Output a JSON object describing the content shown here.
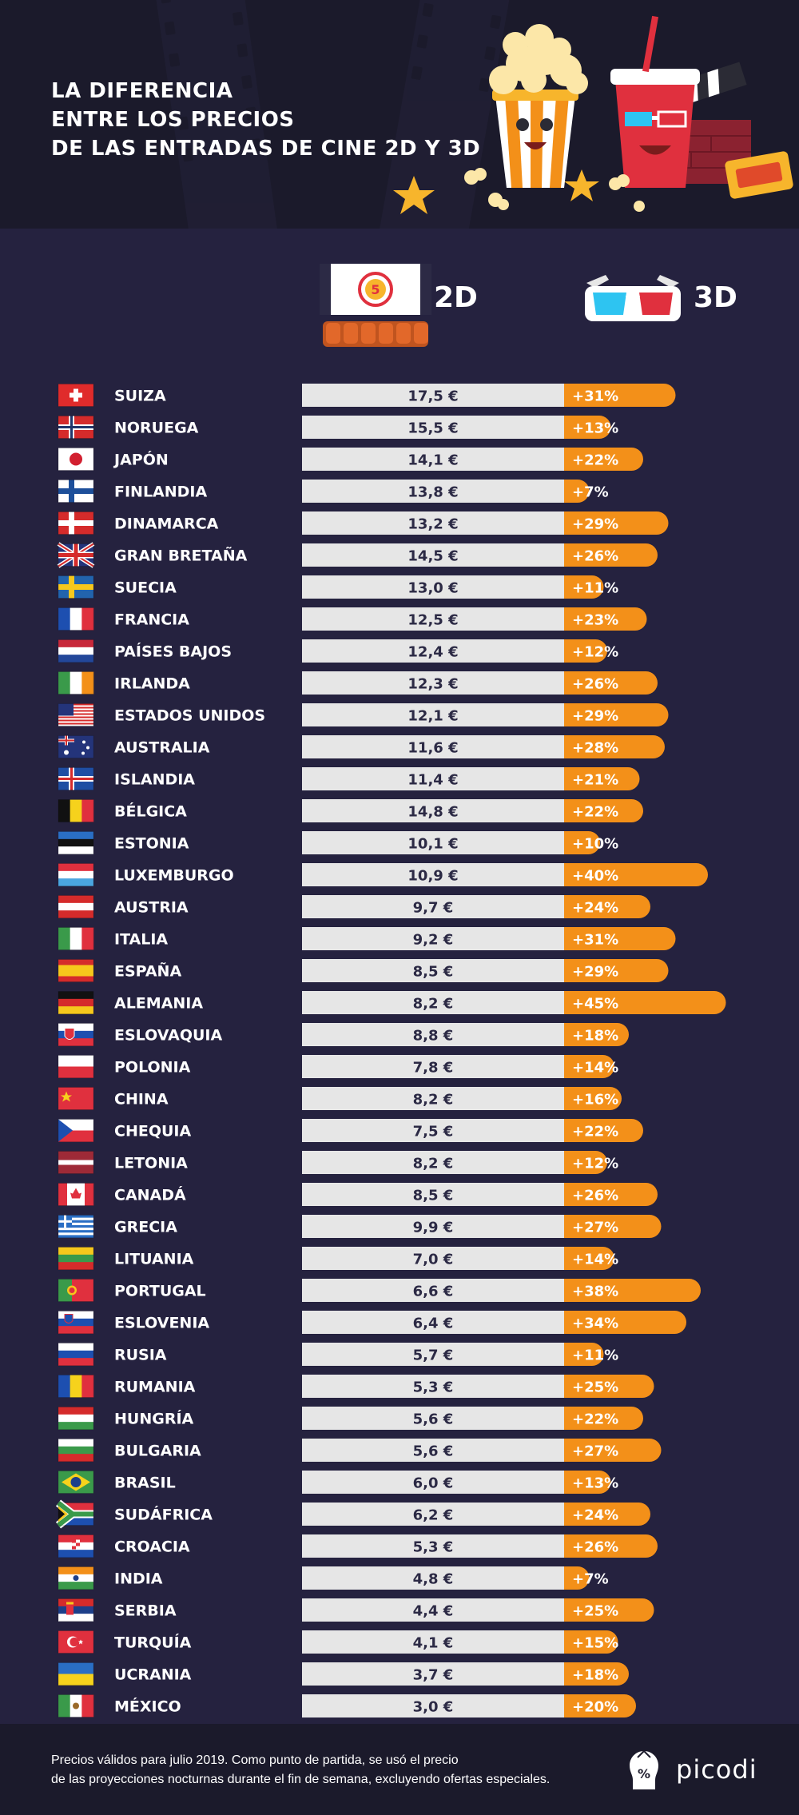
{
  "header": {
    "title_lines": [
      "LA DIFERENCIA",
      "ENTRE LOS PRECIOS",
      "DE LAS ENTRADAS DE CINE 2D Y 3D"
    ]
  },
  "columns": {
    "label_2d": "2D",
    "label_3d": "3D",
    "icon_2d": "cinema-screen-icon",
    "icon_3d": "3d-glasses-icon"
  },
  "colors": {
    "background": "#25223f",
    "header_bg": "#1b1a2b",
    "bar_2d": "#e6e6e6",
    "bar_3d": "#f39019",
    "text": "#ffffff"
  },
  "chart_data": {
    "type": "bar",
    "categories": [
      "SUIZA",
      "NORUEGA",
      "JAPÓN",
      "FINLANDIA",
      "DINAMARCA",
      "GRAN BRETAÑA",
      "SUECIA",
      "FRANCIA",
      "PAÍSES BAJOS",
      "IRLANDA",
      "ESTADOS UNIDOS",
      "AUSTRALIA",
      "ISLANDIA",
      "BÉLGICA",
      "ESTONIA",
      "LUXEMBURGO",
      "AUSTRIA",
      "ITALIA",
      "ESPAÑA",
      "ALEMANIA",
      "ESLOVAQUIA",
      "POLONIA",
      "CHINA",
      "CHEQUIA",
      "LETONIA",
      "CANADÁ",
      "GRECIA",
      "LITUANIA",
      "PORTUGAL",
      "ESLOVENIA",
      "RUSIA",
      "RUMANIA",
      "HUNGRÍA",
      "BULGARIA",
      "BRASIL",
      "SUDÁFRICA",
      "CROACIA",
      "INDIA",
      "SERBIA",
      "TURQUÍA",
      "UCRANIA",
      "MÉXICO"
    ],
    "series": [
      {
        "name": "2D",
        "values": [
          17.5,
          15.5,
          14.1,
          13.8,
          13.2,
          14.5,
          13.0,
          12.5,
          12.4,
          12.3,
          12.1,
          11.6,
          11.4,
          14.8,
          10.1,
          10.9,
          9.7,
          9.2,
          8.5,
          8.2,
          8.8,
          7.8,
          8.2,
          7.5,
          8.2,
          8.5,
          9.9,
          7.0,
          6.6,
          6.4,
          5.7,
          5.3,
          5.6,
          5.6,
          6.0,
          6.2,
          5.3,
          4.8,
          4.4,
          4.1,
          3.7,
          3.0
        ],
        "labels": [
          "17,5 €",
          "15,5 €",
          "14,1 €",
          "13,8 €",
          "13,2 €",
          "14,5 €",
          "13,0 €",
          "12,5 €",
          "12,4 €",
          "12,3 €",
          "12,1 €",
          "11,6 €",
          "11,4 €",
          "14,8 €",
          "10,1 €",
          "10,9 €",
          "9,7 €",
          "9,2 €",
          "8,5 €",
          "8,2 €",
          "8,8 €",
          "7,8 €",
          "8,2 €",
          "7,5 €",
          "8,2 €",
          "8,5 €",
          "9,9 €",
          "7,0 €",
          "6,6 €",
          "6,4 €",
          "5,7 €",
          "5,3 €",
          "5,6 €",
          "5,6 €",
          "6,0 €",
          "6,2 €",
          "5,3 €",
          "4,8 €",
          "4,4 €",
          "4,1 €",
          "3,7 €",
          "3,0 €"
        ]
      },
      {
        "name": "3D",
        "values": [
          31,
          13,
          22,
          7,
          29,
          26,
          11,
          23,
          12,
          26,
          29,
          28,
          21,
          22,
          10,
          40,
          24,
          31,
          29,
          45,
          18,
          14,
          16,
          22,
          12,
          26,
          27,
          14,
          38,
          34,
          11,
          25,
          22,
          27,
          13,
          24,
          26,
          7,
          25,
          15,
          18,
          20
        ],
        "labels": [
          "+31%",
          "+13%",
          "+22%",
          "+7%",
          "+29%",
          "+26%",
          "+11%",
          "+23%",
          "+12%",
          "+26%",
          "+29%",
          "+28%",
          "+21%",
          "+22%",
          "+10%",
          "+40%",
          "+24%",
          "+31%",
          "+29%",
          "+45%",
          "+18%",
          "+14%",
          "+16%",
          "+22%",
          "+12%",
          "+26%",
          "+27%",
          "+14%",
          "+38%",
          "+34%",
          "+11%",
          "+25%",
          "+22%",
          "+27%",
          "+13%",
          "+24%",
          "+26%",
          "+7%",
          "+25%",
          "+15%",
          "+18%",
          "+20%"
        ]
      }
    ],
    "flags": [
      "flag-switzerland-icon",
      "flag-norway-icon",
      "flag-japan-icon",
      "flag-finland-icon",
      "flag-denmark-icon",
      "flag-uk-icon",
      "flag-sweden-icon",
      "flag-france-icon",
      "flag-netherlands-icon",
      "flag-ireland-icon",
      "flag-usa-icon",
      "flag-australia-icon",
      "flag-iceland-icon",
      "flag-belgium-icon",
      "flag-estonia-icon",
      "flag-luxembourg-icon",
      "flag-austria-icon",
      "flag-italy-icon",
      "flag-spain-icon",
      "flag-germany-icon",
      "flag-slovakia-icon",
      "flag-poland-icon",
      "flag-china-icon",
      "flag-czechia-icon",
      "flag-latvia-icon",
      "flag-canada-icon",
      "flag-greece-icon",
      "flag-lithuania-icon",
      "flag-portugal-icon",
      "flag-slovenia-icon",
      "flag-russia-icon",
      "flag-romania-icon",
      "flag-hungary-icon",
      "flag-bulgaria-icon",
      "flag-brazil-icon",
      "flag-south-africa-icon",
      "flag-croatia-icon",
      "flag-india-icon",
      "flag-serbia-icon",
      "flag-turkey-icon",
      "flag-ukraine-icon",
      "flag-mexico-icon"
    ],
    "xlabel": "",
    "ylabel": ""
  },
  "footer": {
    "note_lines": [
      "Precios válidos para julio 2019. Como punto de partida, se usó el precio",
      "de las proyecciones nocturnas durante el fin de semana, excluyendo ofertas especiales."
    ],
    "brand": "picodi",
    "brand_icon": "picodi-logo-icon"
  }
}
